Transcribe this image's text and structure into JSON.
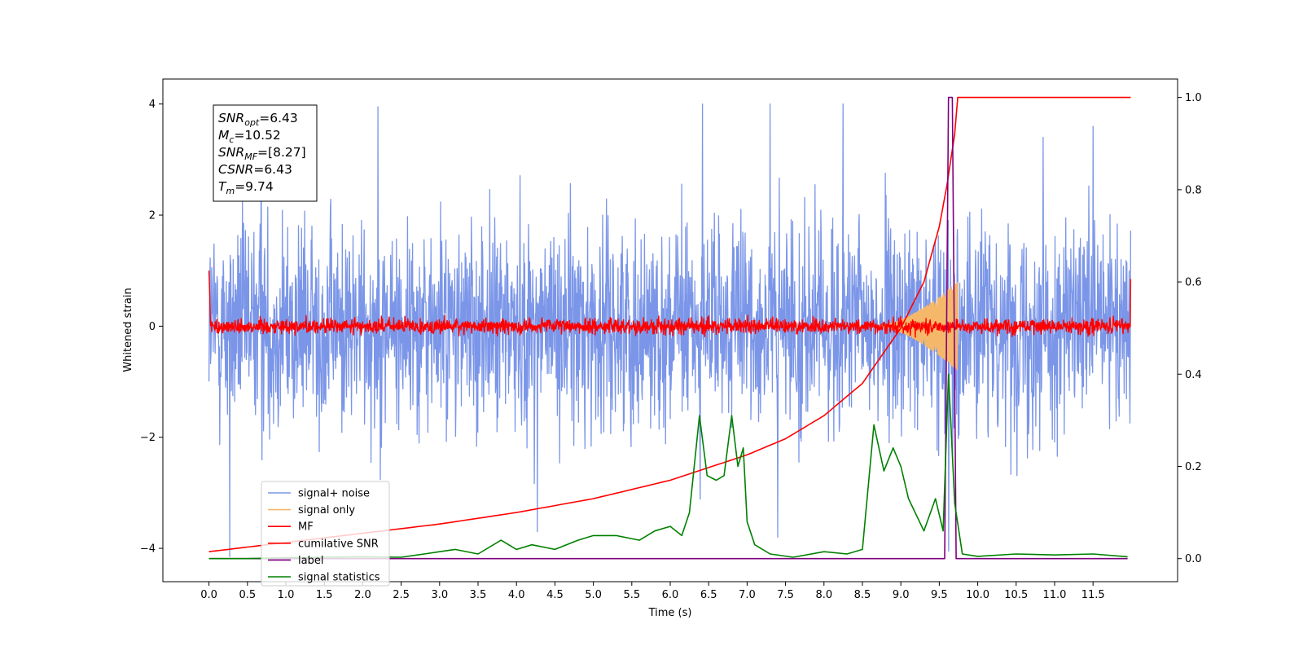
{
  "chart_data": {
    "type": "line",
    "title": "",
    "xlabel": "Time (s)",
    "ylabel": "Whitened strain",
    "xlim": [
      -0.6,
      12.6
    ],
    "ylim": [
      -4.6,
      4.45
    ],
    "y2lim": [
      -0.05,
      1.04
    ],
    "grid": false,
    "legend_position": "lower-left",
    "x_ticks": [
      0.0,
      0.5,
      1.0,
      1.5,
      2.0,
      2.5,
      3.0,
      3.5,
      4.0,
      4.5,
      5.0,
      5.5,
      6.0,
      6.5,
      7.0,
      7.5,
      8.0,
      8.5,
      9.0,
      9.5,
      10.0,
      10.5,
      11.0,
      11.5
    ],
    "x_tick_labels": [
      "0.0",
      "0.5",
      "1.0",
      "1.5",
      "2.0",
      "2.5",
      "3.0",
      "3.5",
      "4.0",
      "4.5",
      "5.0",
      "5.5",
      "6.0",
      "6.5",
      "7.0",
      "7.5",
      "8.0",
      "8.5",
      "9.0",
      "9.5",
      "10.0",
      "10.5",
      "11.0",
      "11.5"
    ],
    "y_ticks": [
      -4,
      -2,
      0,
      2,
      4
    ],
    "y_tick_labels": [
      "−4",
      "−2",
      "0",
      "2",
      "4"
    ],
    "y2_ticks": [
      0.0,
      0.2,
      0.4,
      0.6,
      0.8,
      1.0
    ],
    "y2_tick_labels": [
      "0.0",
      "0.2",
      "0.4",
      "0.6",
      "0.8",
      "1.0"
    ],
    "annotation": {
      "lines": [
        {
          "sym": "SNR",
          "sub": "opt",
          "val": "=6.43"
        },
        {
          "sym": "M",
          "sub": "c",
          "val": "=10.52"
        },
        {
          "sym": "SNR",
          "sub": "MF",
          "val": "=[8.27]"
        },
        {
          "sym": "CSNR",
          "sub": "",
          "val": "=6.43"
        },
        {
          "sym": "T",
          "sub": "m",
          "val": "=9.74"
        }
      ]
    },
    "series": [
      {
        "name": "signal+ noise",
        "color": "#7b96e8",
        "axis": "left",
        "kind": "noise",
        "x_range": [
          0.0,
          11.99
        ],
        "amplitude": 2.2,
        "peaks": [
          {
            "x": 0.27,
            "y": -4.15
          },
          {
            "x": 0.68,
            "y": 3.9
          },
          {
            "x": 2.2,
            "y": 3.95
          },
          {
            "x": 4.27,
            "y": -3.7
          },
          {
            "x": 6.42,
            "y": 4.0
          },
          {
            "x": 7.3,
            "y": 4.0
          },
          {
            "x": 7.4,
            "y": -3.8
          },
          {
            "x": 8.25,
            "y": 4.0
          },
          {
            "x": 9.62,
            "y": -4.05
          },
          {
            "x": 11.5,
            "y": 3.6
          },
          {
            "x": 10.85,
            "y": 3.4
          }
        ]
      },
      {
        "name": "signal only",
        "color": "#f5b86a",
        "axis": "left",
        "kind": "chirp",
        "x_range": [
          8.7,
          9.74
        ],
        "end_amplitude": 0.8
      },
      {
        "name": "MF",
        "color": "#ff0000",
        "axis": "left",
        "kind": "noise",
        "x_range": [
          0.0,
          11.99
        ],
        "amplitude": 0.16,
        "start_value": 1.0,
        "end_value": 0.85
      },
      {
        "name": "cumilative SNR",
        "color": "#ff0000",
        "axis": "right",
        "kind": "curve",
        "x": [
          0.0,
          0.5,
          1.0,
          2.0,
          3.0,
          4.0,
          5.0,
          6.0,
          7.0,
          7.5,
          8.0,
          8.5,
          9.0,
          9.3,
          9.5,
          9.6,
          9.7,
          9.74,
          11.99
        ],
        "y": [
          0.015,
          0.025,
          0.035,
          0.055,
          0.075,
          0.1,
          0.13,
          0.17,
          0.225,
          0.26,
          0.31,
          0.38,
          0.5,
          0.6,
          0.72,
          0.81,
          0.92,
          1.0,
          1.0
        ]
      },
      {
        "name": "label",
        "color": "#800080",
        "axis": "right",
        "kind": "step",
        "x": [
          0.0,
          9.57,
          9.62,
          9.67,
          9.72,
          11.95
        ],
        "y": [
          0.0,
          0.0,
          1.0,
          1.0,
          0.0,
          0.0
        ]
      },
      {
        "name": "signal statistics",
        "color": "#008000",
        "axis": "right",
        "kind": "curve",
        "x": [
          0.0,
          0.5,
          1.0,
          1.5,
          2.0,
          2.5,
          2.8,
          3.0,
          3.2,
          3.5,
          3.8,
          4.0,
          4.2,
          4.5,
          4.8,
          5.0,
          5.3,
          5.6,
          5.8,
          6.0,
          6.15,
          6.25,
          6.38,
          6.48,
          6.6,
          6.7,
          6.8,
          6.88,
          6.95,
          7.0,
          7.1,
          7.3,
          7.6,
          8.0,
          8.3,
          8.5,
          8.65,
          8.78,
          8.9,
          9.0,
          9.1,
          9.3,
          9.45,
          9.55,
          9.62,
          9.7,
          9.8,
          10.0,
          10.5,
          11.0,
          11.5,
          11.95
        ],
        "y": [
          0.0,
          0.0,
          0.002,
          0.003,
          0.004,
          0.003,
          0.01,
          0.015,
          0.02,
          0.01,
          0.04,
          0.02,
          0.03,
          0.02,
          0.04,
          0.05,
          0.05,
          0.04,
          0.06,
          0.07,
          0.05,
          0.1,
          0.31,
          0.18,
          0.17,
          0.18,
          0.31,
          0.2,
          0.24,
          0.08,
          0.03,
          0.01,
          0.003,
          0.015,
          0.01,
          0.02,
          0.29,
          0.19,
          0.24,
          0.2,
          0.13,
          0.06,
          0.13,
          0.06,
          0.4,
          0.12,
          0.01,
          0.005,
          0.01,
          0.008,
          0.01,
          0.004
        ]
      }
    ]
  }
}
